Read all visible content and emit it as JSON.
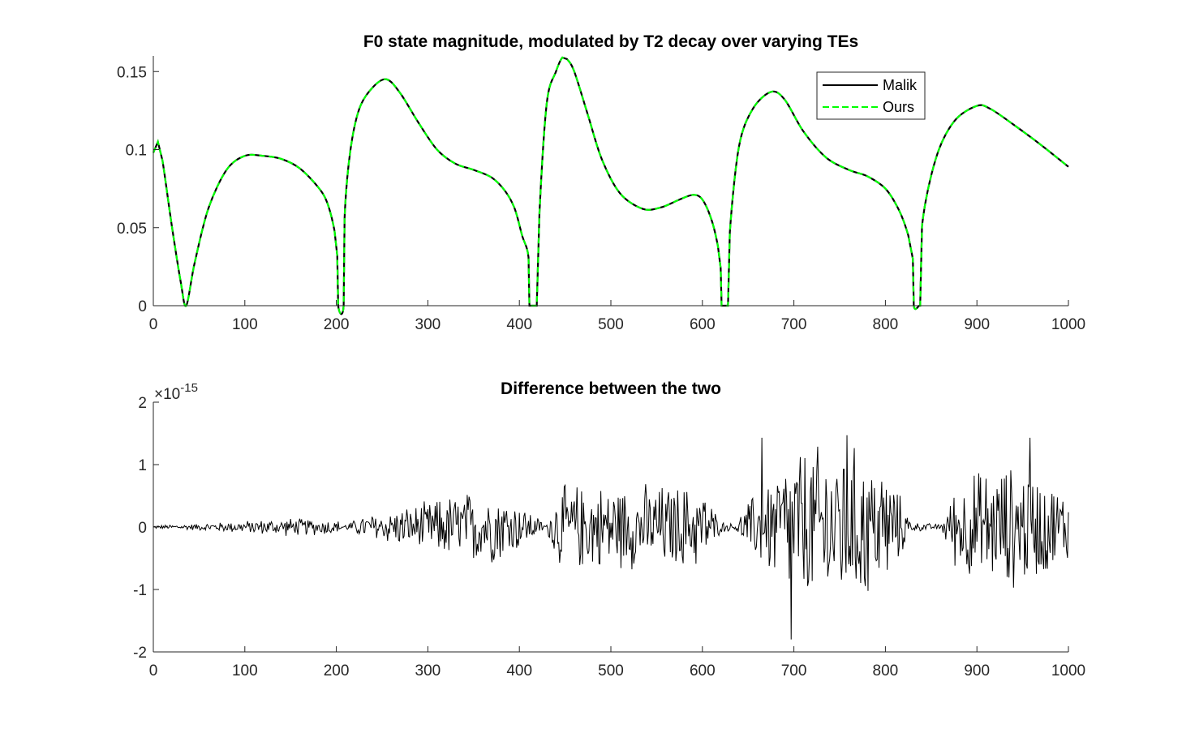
{
  "chart_data": [
    {
      "type": "line",
      "title": "F0 state magnitude, modulated by T2 decay over varying TEs",
      "xlabel": "",
      "ylabel": "",
      "xlim": [
        0,
        1000
      ],
      "ylim": [
        0,
        0.16
      ],
      "xticks": [
        "0",
        "100",
        "200",
        "300",
        "400",
        "500",
        "600",
        "700",
        "800",
        "900",
        "1000"
      ],
      "yticks": [
        "0",
        "0.05",
        "0.1",
        "0.15"
      ],
      "grid": false,
      "legend_position": "top-right",
      "series": [
        {
          "name": "Malik",
          "color": "#000000",
          "style": "solid",
          "x": [
            0,
            5,
            10,
            20,
            30,
            36,
            45,
            60,
            80,
            100,
            120,
            140,
            160,
            180,
            190,
            198,
            201,
            202,
            208,
            209,
            215,
            225,
            240,
            255,
            270,
            290,
            310,
            330,
            350,
            370,
            385,
            395,
            403,
            410,
            411,
            416,
            419,
            422,
            430,
            440,
            447,
            452,
            460,
            475,
            490,
            510,
            535,
            555,
            575,
            590,
            600,
            610,
            617,
            620,
            621,
            626,
            628,
            630,
            640,
            655,
            675,
            690,
            710,
            735,
            760,
            780,
            800,
            815,
            825,
            830,
            831,
            837,
            838,
            840,
            855,
            875,
            900,
            915,
            940,
            970,
            1000
          ],
          "y": [
            0.098,
            0.105,
            0.093,
            0.052,
            0.015,
            0.0,
            0.027,
            0.062,
            0.087,
            0.096,
            0.096,
            0.094,
            0.088,
            0.076,
            0.066,
            0.048,
            0.032,
            0.0,
            0.0,
            0.056,
            0.098,
            0.126,
            0.14,
            0.145,
            0.136,
            0.117,
            0.1,
            0.091,
            0.087,
            0.082,
            0.073,
            0.062,
            0.045,
            0.031,
            0.0,
            0.0,
            0.0,
            0.06,
            0.13,
            0.15,
            0.159,
            0.158,
            0.15,
            0.122,
            0.094,
            0.072,
            0.062,
            0.063,
            0.068,
            0.071,
            0.068,
            0.055,
            0.038,
            0.024,
            0.0,
            0.0,
            0.0,
            0.047,
            0.102,
            0.126,
            0.137,
            0.132,
            0.112,
            0.095,
            0.087,
            0.083,
            0.075,
            0.061,
            0.045,
            0.03,
            0.0,
            0.0,
            0.0,
            0.051,
            0.094,
            0.118,
            0.128,
            0.126,
            0.116,
            0.103,
            0.089
          ]
        },
        {
          "name": "Ours",
          "color": "#00ff00",
          "style": "dashed",
          "same_as": "Malik"
        }
      ]
    },
    {
      "type": "line",
      "title": "Difference between the two",
      "xlabel": "",
      "ylabel": "",
      "xlim": [
        0,
        1000
      ],
      "ylim": [
        -2,
        2
      ],
      "axis_exponent_label": "×10",
      "axis_exponent": "-15",
      "xticks": [
        "0",
        "100",
        "200",
        "300",
        "400",
        "500",
        "600",
        "700",
        "800",
        "900",
        "1000"
      ],
      "yticks": [
        "-2",
        "-1",
        "0",
        "1",
        "2"
      ],
      "grid": false,
      "series_color": "#000000",
      "envelope": {
        "x": [
          0,
          50,
          100,
          150,
          200,
          210,
          230,
          260,
          300,
          320,
          350,
          380,
          410,
          430,
          440,
          460,
          500,
          550,
          600,
          620,
          635,
          650,
          700,
          760,
          800,
          830,
          860,
          880,
          900,
          950,
          1000
        ],
        "amp": [
          0.03,
          0.06,
          0.11,
          0.16,
          0.13,
          0.05,
          0.2,
          0.3,
          0.44,
          0.55,
          0.65,
          0.62,
          0.3,
          0.05,
          0.7,
          0.75,
          0.75,
          0.75,
          0.72,
          0.1,
          0.05,
          0.45,
          1.4,
          1.45,
          1.1,
          0.08,
          0.05,
          0.85,
          1.0,
          1.1,
          0.6
        ]
      },
      "extremes": [
        {
          "x": 697,
          "y": -1.8
        },
        {
          "x": 758,
          "y": 1.47
        },
        {
          "x": 665,
          "y": 1.43
        },
        {
          "x": 958,
          "y": 1.43
        }
      ]
    }
  ]
}
